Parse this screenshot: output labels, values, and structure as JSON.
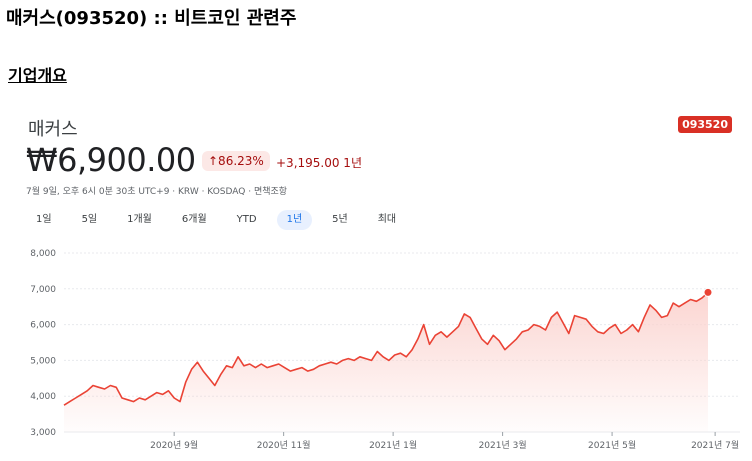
{
  "page_title": "매커스(093520) :: 비트코인 관련주",
  "section_title": "기업개요",
  "company_name": "매커스",
  "ticker": "093520",
  "price": "₩6,900.00",
  "change_percent": "↑86.23%",
  "change_abs": "+3,195.00 1년",
  "meta": "7월 9일, 오후 6시 0분 30초 UTC+9 · KRW · KOSDAQ · 면책조항",
  "ranges": [
    "1일",
    "5일",
    "1개월",
    "6개월",
    "YTD",
    "1년",
    "5년",
    "최대"
  ],
  "active_range": "1년",
  "colors": {
    "accent": "#d93025",
    "line": "#ea4335",
    "fill": "#fbd3cf"
  },
  "chart_data": {
    "type": "area",
    "ylim": [
      3000,
      8000
    ],
    "yticks": [
      "8,000",
      "7,000",
      "6,000",
      "5,000",
      "4,000",
      "3,000"
    ],
    "ytick_values": [
      8000,
      7000,
      6000,
      5000,
      4000,
      3000
    ],
    "xticks": [
      "2020년 9월",
      "2020년 11월",
      "2021년 1월",
      "2021년 3월",
      "2021년 5월",
      "2021년 7월"
    ],
    "xtick_positions": [
      0.14,
      0.31,
      0.48,
      0.65,
      0.82,
      0.98
    ],
    "grid": true,
    "points": [
      [
        0.0,
        3750
      ],
      [
        0.01,
        3850
      ],
      [
        0.02,
        3950
      ],
      [
        0.03,
        4050
      ],
      [
        0.04,
        4150
      ],
      [
        0.05,
        4300
      ],
      [
        0.06,
        4250
      ],
      [
        0.07,
        4200
      ],
      [
        0.08,
        4300
      ],
      [
        0.09,
        4250
      ],
      [
        0.1,
        3950
      ],
      [
        0.11,
        3900
      ],
      [
        0.12,
        3850
      ],
      [
        0.13,
        3950
      ],
      [
        0.14,
        3900
      ],
      [
        0.15,
        4000
      ],
      [
        0.16,
        4100
      ],
      [
        0.17,
        4050
      ],
      [
        0.18,
        4150
      ],
      [
        0.19,
        3950
      ],
      [
        0.2,
        3850
      ],
      [
        0.21,
        4400
      ],
      [
        0.22,
        4750
      ],
      [
        0.23,
        4950
      ],
      [
        0.24,
        4700
      ],
      [
        0.25,
        4500
      ],
      [
        0.26,
        4300
      ],
      [
        0.27,
        4600
      ],
      [
        0.28,
        4850
      ],
      [
        0.29,
        4800
      ],
      [
        0.3,
        5100
      ],
      [
        0.31,
        4850
      ],
      [
        0.32,
        4900
      ],
      [
        0.33,
        4800
      ],
      [
        0.34,
        4900
      ],
      [
        0.35,
        4800
      ],
      [
        0.36,
        4850
      ],
      [
        0.37,
        4900
      ],
      [
        0.38,
        4800
      ],
      [
        0.39,
        4700
      ],
      [
        0.4,
        4750
      ],
      [
        0.41,
        4800
      ],
      [
        0.42,
        4700
      ],
      [
        0.43,
        4750
      ],
      [
        0.44,
        4850
      ],
      [
        0.45,
        4900
      ],
      [
        0.46,
        4950
      ],
      [
        0.47,
        4900
      ],
      [
        0.48,
        5000
      ],
      [
        0.49,
        5050
      ],
      [
        0.5,
        5000
      ],
      [
        0.51,
        5100
      ],
      [
        0.52,
        5050
      ],
      [
        0.53,
        5000
      ],
      [
        0.54,
        5250
      ],
      [
        0.55,
        5100
      ],
      [
        0.56,
        5000
      ],
      [
        0.57,
        5150
      ],
      [
        0.58,
        5200
      ],
      [
        0.59,
        5100
      ],
      [
        0.6,
        5300
      ],
      [
        0.61,
        5600
      ],
      [
        0.62,
        6000
      ],
      [
        0.63,
        5450
      ],
      [
        0.64,
        5700
      ],
      [
        0.65,
        5800
      ],
      [
        0.66,
        5650
      ],
      [
        0.67,
        5800
      ],
      [
        0.68,
        5950
      ],
      [
        0.69,
        6300
      ],
      [
        0.7,
        6200
      ],
      [
        0.71,
        5900
      ],
      [
        0.72,
        5600
      ],
      [
        0.73,
        5450
      ],
      [
        0.74,
        5700
      ],
      [
        0.75,
        5550
      ],
      [
        0.76,
        5300
      ],
      [
        0.77,
        5450
      ],
      [
        0.78,
        5600
      ],
      [
        0.79,
        5800
      ],
      [
        0.8,
        5850
      ],
      [
        0.81,
        6000
      ],
      [
        0.82,
        5950
      ],
      [
        0.83,
        5850
      ],
      [
        0.84,
        6200
      ],
      [
        0.85,
        6350
      ],
      [
        0.86,
        6050
      ],
      [
        0.87,
        5750
      ],
      [
        0.88,
        6250
      ],
      [
        0.89,
        6200
      ],
      [
        0.9,
        6150
      ],
      [
        0.91,
        5950
      ],
      [
        0.92,
        5800
      ],
      [
        0.93,
        5750
      ],
      [
        0.94,
        5900
      ],
      [
        0.95,
        6000
      ],
      [
        0.96,
        5750
      ],
      [
        0.97,
        5850
      ],
      [
        0.98,
        6000
      ],
      [
        0.99,
        5800
      ],
      [
        1.0,
        6200
      ],
      [
        1.01,
        6550
      ],
      [
        1.02,
        6400
      ],
      [
        1.03,
        6200
      ],
      [
        1.04,
        6250
      ],
      [
        1.05,
        6600
      ],
      [
        1.06,
        6500
      ],
      [
        1.07,
        6600
      ],
      [
        1.08,
        6700
      ],
      [
        1.09,
        6650
      ],
      [
        1.1,
        6750
      ],
      [
        1.11,
        6900
      ]
    ]
  }
}
